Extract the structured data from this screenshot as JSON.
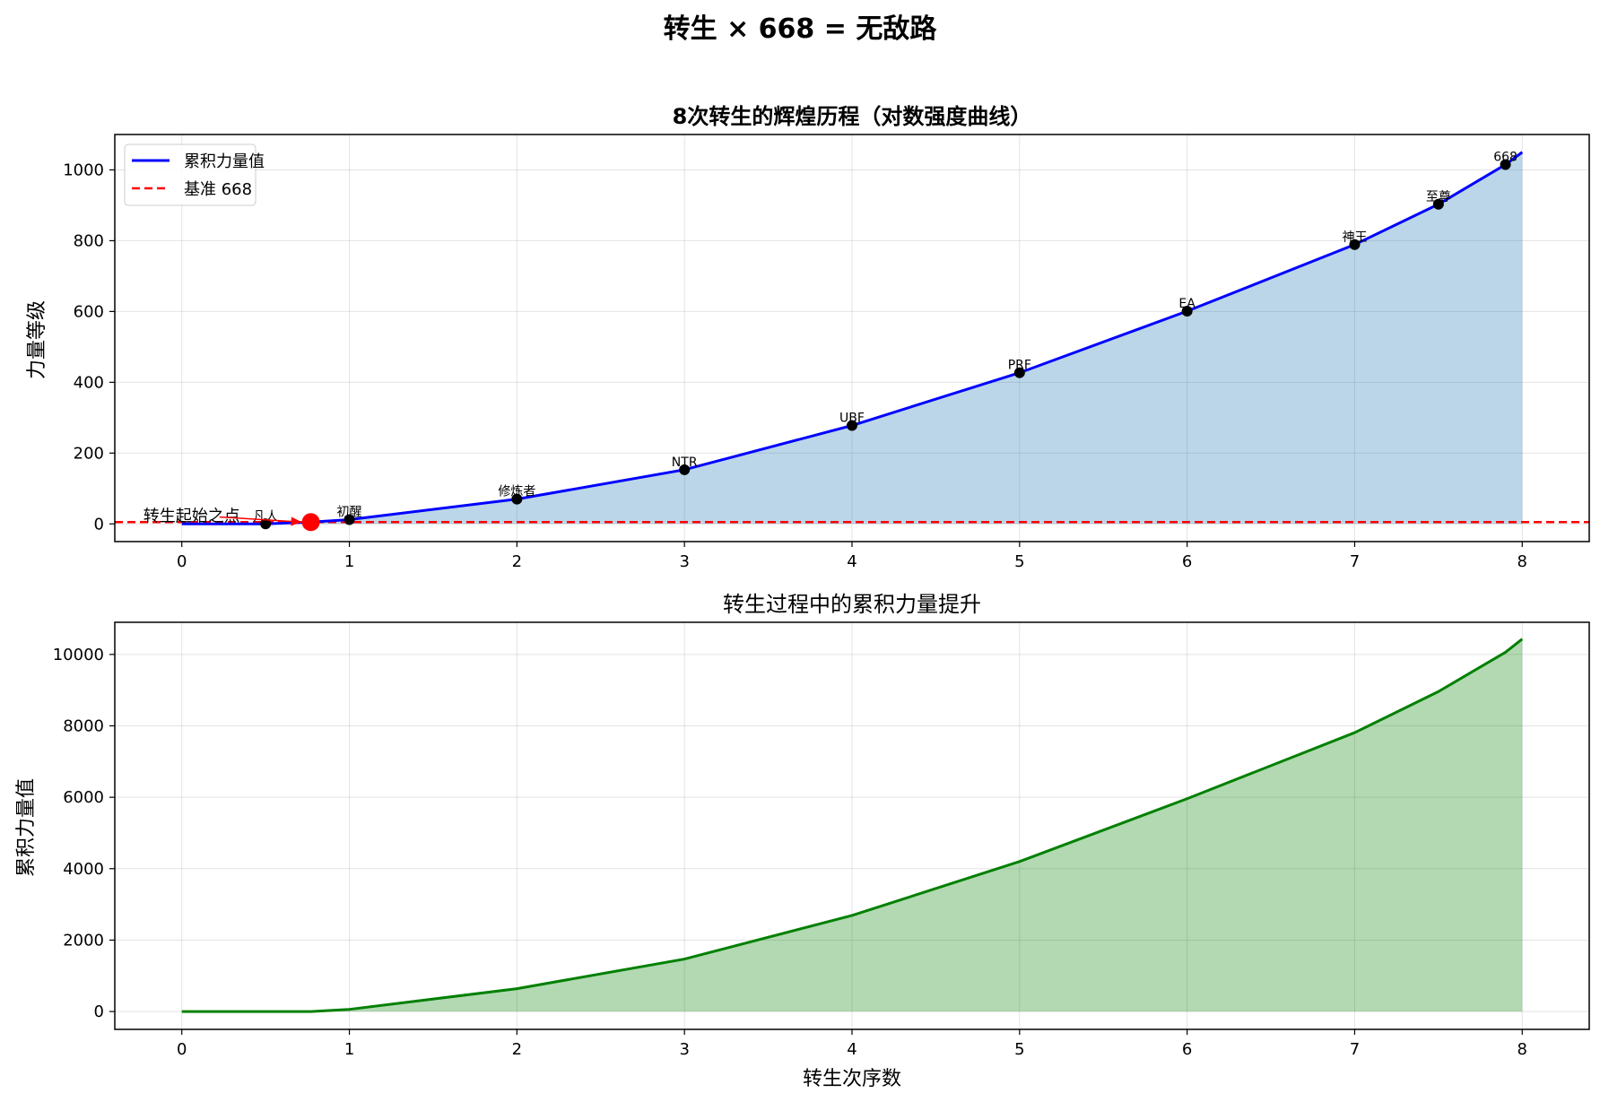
{
  "figure_title": "转生 × 668 = 无敌路",
  "chart_data": [
    {
      "type": "line",
      "title": "8次转生的辉煌历程（对数强度曲线）",
      "xlabel": "",
      "ylabel": "力量等级",
      "xlim": [
        -0.4,
        8.4
      ],
      "ylim": [
        -50,
        1100
      ],
      "xticks": [
        0,
        1,
        2,
        3,
        4,
        5,
        6,
        7,
        8
      ],
      "yticks": [
        0,
        200,
        400,
        600,
        800,
        1000
      ],
      "grid": true,
      "legend": {
        "placement": "top-left",
        "entries": [
          {
            "label": "累积力量值",
            "color": "#0000ff",
            "style": "solid"
          },
          {
            "label": "基准 668",
            "color": "#ff0000",
            "style": "dashed"
          }
        ]
      },
      "series": [
        {
          "name": "累积力量值",
          "color": "#0000ff",
          "fill_color": "#1f77b4",
          "x": [
            0,
            0.5,
            0.77,
            1,
            2,
            3,
            4,
            5,
            6,
            7,
            7.5,
            7.9,
            8
          ],
          "y": [
            0,
            0,
            5,
            12,
            70,
            153,
            278,
            427,
            601,
            789,
            903,
            1015,
            1050
          ]
        }
      ],
      "hline": {
        "y": 5,
        "color": "#ff0000",
        "label": "基准 668"
      },
      "points": [
        {
          "x": 0.5,
          "y": 0,
          "label": "凡人"
        },
        {
          "x": 1,
          "y": 12,
          "label": "初醒"
        },
        {
          "x": 2,
          "y": 70,
          "label": "修炼者"
        },
        {
          "x": 3,
          "y": 153,
          "label": "NTR"
        },
        {
          "x": 4,
          "y": 278,
          "label": "UBF"
        },
        {
          "x": 5,
          "y": 427,
          "label": "PRF"
        },
        {
          "x": 6,
          "y": 601,
          "label": "EA"
        },
        {
          "x": 7,
          "y": 789,
          "label": "神王"
        },
        {
          "x": 7.5,
          "y": 903,
          "label": "至尊"
        },
        {
          "x": 7.9,
          "y": 1015,
          "label": "668"
        }
      ],
      "highlight_point": {
        "x": 0.77,
        "y": 5,
        "color": "#ff0000"
      },
      "annotation": {
        "text": "转生起始之点",
        "text_x": -0.23,
        "text_y": 22,
        "target_x": 0.77,
        "target_y": 5,
        "color": "#ff0000"
      }
    },
    {
      "type": "area",
      "title": "转生过程中的累积力量提升",
      "xlabel": "转生次序数",
      "ylabel": "累积力量值",
      "xlim": [
        -0.4,
        8.4
      ],
      "ylim": [
        -500,
        10900
      ],
      "xticks": [
        0,
        1,
        2,
        3,
        4,
        5,
        6,
        7,
        8
      ],
      "yticks": [
        0,
        2000,
        4000,
        6000,
        8000,
        10000
      ],
      "grid": true,
      "series": [
        {
          "name": "累积力量值",
          "color": "#008000",
          "fill_color": "#008000",
          "x": [
            0,
            0.5,
            0.77,
            1,
            2,
            3,
            4,
            5,
            6,
            7,
            7.5,
            7.9,
            8
          ],
          "y": [
            0,
            0,
            0,
            60,
            640,
            1470,
            2690,
            4200,
            5960,
            7810,
            8960,
            10060,
            10430
          ]
        }
      ]
    }
  ]
}
